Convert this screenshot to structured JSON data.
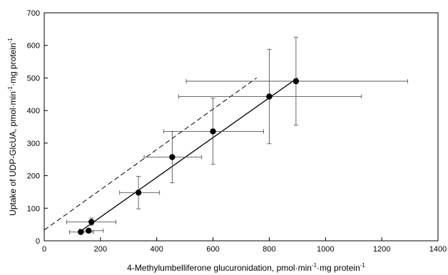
{
  "chart_data": {
    "type": "scatter",
    "title": "",
    "xlabel": {
      "pre": "4-Methylumbelliferone glucuronidation, pmol·min",
      "sup1": "-1",
      "mid": "·mg protein",
      "sup2": "-1"
    },
    "ylabel": {
      "pre": "Uptake of UDP-GlcUA, pmol·min",
      "sup1": "-1",
      "mid": "·mg protein",
      "sup2": "-1"
    },
    "xlim": [
      0,
      1400
    ],
    "ylim": [
      0,
      700
    ],
    "x_ticks": [
      "0",
      "200",
      "400",
      "600",
      "800",
      "1000",
      "1200",
      "1400"
    ],
    "y_ticks": [
      "0",
      "100",
      "200",
      "300",
      "400",
      "500",
      "600",
      "700"
    ],
    "grid": false,
    "points": [
      {
        "x": 130,
        "y": 27,
        "xerr_low": 90,
        "xerr_high": 175,
        "yerr_low": 22,
        "yerr_high": 32
      },
      {
        "x": 158,
        "y": 31,
        "xerr_low": 125,
        "xerr_high": 210,
        "yerr_low": 25,
        "yerr_high": 37
      },
      {
        "x": 168,
        "y": 58,
        "xerr_low": 80,
        "xerr_high": 255,
        "yerr_low": 48,
        "yerr_high": 70
      },
      {
        "x": 335,
        "y": 148,
        "xerr_low": 268,
        "xerr_high": 410,
        "yerr_low": 98,
        "yerr_high": 198
      },
      {
        "x": 455,
        "y": 257,
        "xerr_low": 355,
        "xerr_high": 560,
        "yerr_low": 178,
        "yerr_high": 336
      },
      {
        "x": 600,
        "y": 336,
        "xerr_low": 425,
        "xerr_high": 780,
        "yerr_low": 235,
        "yerr_high": 438
      },
      {
        "x": 800,
        "y": 443,
        "xerr_low": 478,
        "xerr_high": 1128,
        "yerr_low": 298,
        "yerr_high": 588
      },
      {
        "x": 895,
        "y": 490,
        "xerr_low": 505,
        "xerr_high": 1292,
        "yerr_low": 355,
        "yerr_high": 625
      }
    ],
    "lines": [
      {
        "style": "solid",
        "x": [
          130,
          900
        ],
        "y": [
          30,
          500
        ]
      },
      {
        "style": "dashed",
        "x": [
          0,
          755
        ],
        "y": [
          33,
          500
        ]
      }
    ],
    "colors": {
      "marker": "#000000",
      "error_bar": "#555555",
      "line": "#000000",
      "axis": "#000000"
    }
  }
}
